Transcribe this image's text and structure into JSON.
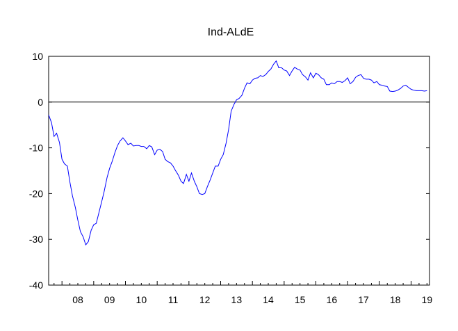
{
  "chart_data": {
    "type": "line",
    "title": "Ind-ALdE",
    "xlabel": "",
    "ylabel": "",
    "ylim": [
      -40,
      10
    ],
    "y_ticks": [
      10,
      0,
      -10,
      -20,
      -30,
      -40
    ],
    "x_range": [
      2007.58,
      2019.58
    ],
    "x_tick_labels": [
      "08",
      "09",
      "10",
      "11",
      "12",
      "13",
      "14",
      "15",
      "16",
      "17",
      "18",
      "19"
    ],
    "x_tick_years": [
      2008,
      2009,
      2010,
      2011,
      2012,
      2013,
      2014,
      2015,
      2016,
      2017,
      2018,
      2019
    ],
    "zero_line": true,
    "grid": false,
    "legend": "none",
    "line_color": "#0000ff",
    "series": [
      {
        "x": [
          2007.58,
          2007.67,
          2007.75,
          2007.83,
          2007.92,
          2008.0,
          2008.08,
          2008.17,
          2008.25,
          2008.33,
          2008.42,
          2008.5,
          2008.58,
          2008.67,
          2008.75,
          2008.83,
          2008.92,
          2009.0,
          2009.08,
          2009.17,
          2009.25,
          2009.33,
          2009.42,
          2009.5,
          2009.58,
          2009.67,
          2009.75,
          2009.83,
          2009.92,
          2010.0,
          2010.08,
          2010.17,
          2010.25,
          2010.33,
          2010.42,
          2010.5,
          2010.58,
          2010.67,
          2010.75,
          2010.83,
          2010.92,
          2011.0,
          2011.08,
          2011.17,
          2011.25,
          2011.33,
          2011.42,
          2011.5,
          2011.58,
          2011.67,
          2011.75,
          2011.83,
          2011.92,
          2012.0,
          2012.08,
          2012.17,
          2012.25,
          2012.33,
          2012.42,
          2012.5,
          2012.58,
          2012.67,
          2012.75,
          2012.83,
          2012.92,
          2013.0,
          2013.08,
          2013.17,
          2013.25,
          2013.33,
          2013.42,
          2013.5,
          2013.58,
          2013.67,
          2013.75,
          2013.83,
          2013.92,
          2014.0,
          2014.08,
          2014.17,
          2014.25,
          2014.33,
          2014.42,
          2014.5,
          2014.58,
          2014.67,
          2014.75,
          2014.83,
          2014.92,
          2015.0,
          2015.08,
          2015.17,
          2015.25,
          2015.33,
          2015.42,
          2015.5,
          2015.58,
          2015.67,
          2015.75,
          2015.83,
          2015.92,
          2016.0,
          2016.08,
          2016.17,
          2016.25,
          2016.33,
          2016.42,
          2016.5,
          2016.58,
          2016.67,
          2016.75,
          2016.83,
          2016.92,
          2017.0,
          2017.08,
          2017.17,
          2017.25,
          2017.33,
          2017.42,
          2017.5,
          2017.58,
          2017.67,
          2017.75,
          2017.83,
          2017.92,
          2018.0,
          2018.08,
          2018.17,
          2018.25,
          2018.33,
          2018.42,
          2018.5,
          2018.58,
          2018.67,
          2018.75,
          2018.83,
          2018.92,
          2019.0,
          2019.08,
          2019.17,
          2019.25,
          2019.33,
          2019.42,
          2019.5
        ],
        "y": [
          -2.8,
          -4.5,
          -7.5,
          -6.8,
          -8.8,
          -12.5,
          -13.5,
          -14.0,
          -17.5,
          -20.5,
          -23.0,
          -25.8,
          -28.3,
          -29.5,
          -31.2,
          -30.5,
          -28.0,
          -26.8,
          -26.5,
          -24.0,
          -21.8,
          -19.5,
          -16.5,
          -14.5,
          -13.0,
          -11.0,
          -9.5,
          -8.5,
          -7.8,
          -8.5,
          -9.3,
          -9.0,
          -9.6,
          -9.5,
          -9.5,
          -9.7,
          -9.7,
          -10.2,
          -9.5,
          -9.8,
          -11.5,
          -10.5,
          -10.3,
          -10.8,
          -12.5,
          -13.0,
          -13.3,
          -14.0,
          -15.0,
          -16.0,
          -17.3,
          -17.8,
          -15.8,
          -17.3,
          -15.5,
          -17.3,
          -18.5,
          -20.0,
          -20.2,
          -20.0,
          -18.5,
          -17.0,
          -15.5,
          -14.0,
          -14.0,
          -12.5,
          -11.5,
          -9.0,
          -6.0,
          -2.0,
          -0.5,
          0.5,
          0.8,
          1.5,
          3.0,
          4.2,
          4.0,
          4.8,
          5.2,
          5.3,
          5.8,
          5.6,
          6.0,
          6.7,
          7.2,
          8.3,
          9.0,
          7.5,
          7.5,
          7.0,
          6.8,
          5.8,
          6.8,
          7.6,
          7.2,
          7.0,
          6.0,
          5.5,
          4.8,
          6.4,
          5.3,
          6.3,
          6.0,
          5.3,
          5.0,
          3.8,
          3.8,
          4.2,
          4.0,
          4.5,
          4.5,
          4.3,
          4.7,
          5.3,
          4.0,
          4.5,
          5.4,
          5.8,
          6.0,
          5.2,
          5.0,
          5.0,
          4.8,
          4.2,
          4.5,
          3.8,
          3.7,
          3.5,
          3.4,
          2.4,
          2.3,
          2.4,
          2.6,
          3.0,
          3.5,
          3.7,
          3.2,
          2.8,
          2.6,
          2.5,
          2.5,
          2.5,
          2.4,
          2.5
        ]
      }
    ]
  }
}
